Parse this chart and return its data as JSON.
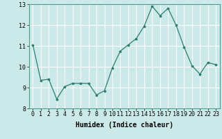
{
  "x": [
    0,
    1,
    2,
    3,
    4,
    5,
    6,
    7,
    8,
    9,
    10,
    11,
    12,
    13,
    14,
    15,
    16,
    17,
    18,
    19,
    20,
    21,
    22,
    23
  ],
  "y": [
    11.05,
    9.35,
    9.4,
    8.45,
    9.05,
    9.2,
    9.2,
    9.2,
    8.65,
    8.85,
    9.95,
    10.75,
    11.05,
    11.35,
    11.95,
    12.9,
    12.45,
    12.8,
    12.0,
    10.95,
    10.05,
    9.65,
    10.2,
    10.1
  ],
  "line_color": "#2d7d6e",
  "marker_color": "#2d7d6e",
  "bg_color": "#cce9e9",
  "grid_color": "#ffffff",
  "xlabel": "Humidex (Indice chaleur)",
  "xlabel_fontsize": 7,
  "tick_fontsize": 6,
  "ylim": [
    8,
    13
  ],
  "xlim": [
    -0.5,
    23.5
  ],
  "yticks": [
    8,
    9,
    10,
    11,
    12,
    13
  ],
  "xticks": [
    0,
    1,
    2,
    3,
    4,
    5,
    6,
    7,
    8,
    9,
    10,
    11,
    12,
    13,
    14,
    15,
    16,
    17,
    18,
    19,
    20,
    21,
    22,
    23
  ]
}
